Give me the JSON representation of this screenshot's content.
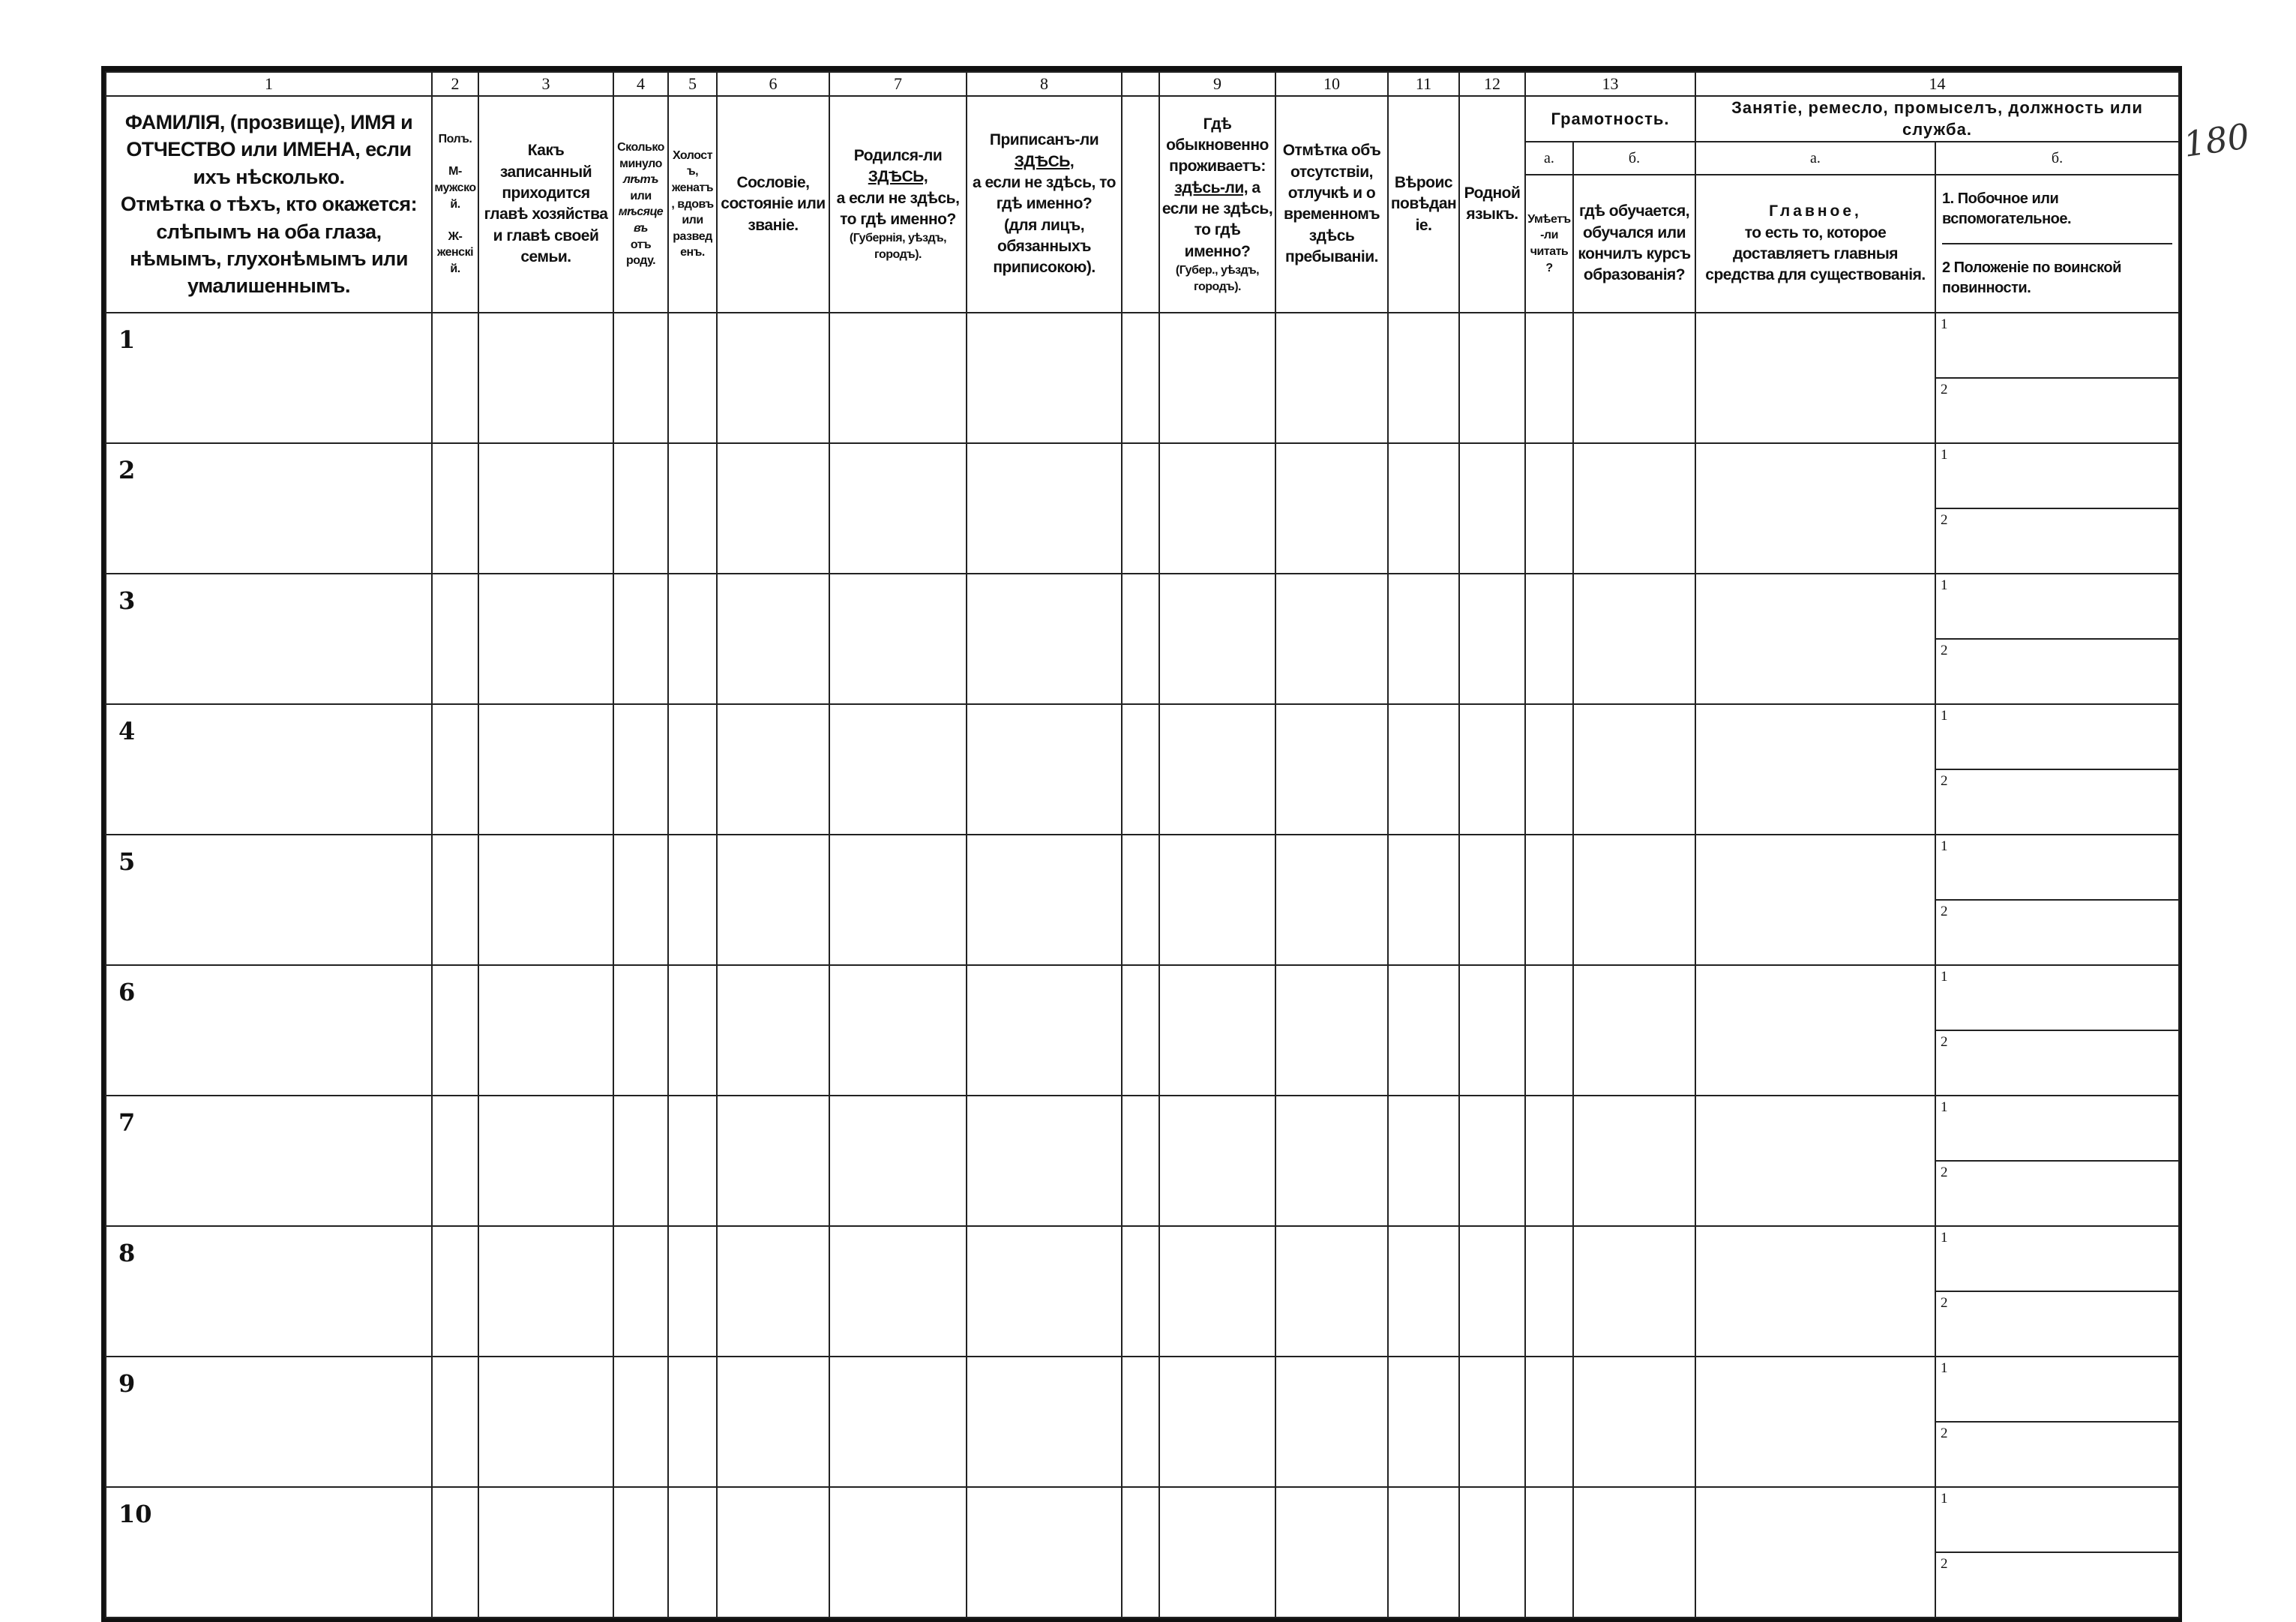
{
  "form": {
    "column_numbers": [
      "1",
      "2",
      "3",
      "4",
      "5",
      "6",
      "7",
      "8",
      "",
      "9",
      "10",
      "11",
      "12",
      "13",
      "14"
    ],
    "columns": {
      "c1": [
        "ФАМИЛІЯ, (прозвище), ИМЯ и ОТЧЕСТВО или ИМЕНА, если ихъ нѣсколько.",
        "Отмѣтка о тѣхъ, кто окажется: слѣпымъ на оба глаза, нѣмымъ, глухонѣмымъ или умалишеннымъ."
      ],
      "c2": [
        "Полъ.",
        "М-мужской.",
        "Ж-женскій."
      ],
      "c3": "Какъ записанный приходится главѣ хозяйства и главѣ своей семьи.",
      "c4": [
        "Сколько минуло",
        "лѣтъ",
        "или",
        "мѣсяцевъ",
        "отъ роду."
      ],
      "c5": "Холостъ, женатъ, вдовъ или разведенъ.",
      "c6": "Сословіе, состояніе или званіе.",
      "c7": {
        "pre": "Родился-ли",
        "em": "ЗДѢСЬ,",
        "post": "а если не здѣсь, то гдѣ именно?",
        "note": "(Губернія, уѣздъ, городъ)."
      },
      "c8": {
        "pre": "Приписанъ-ли",
        "em": "ЗДѢСЬ,",
        "post": "а если не здѣсь, то гдѣ именно?",
        "note": "(для лицъ, обязанныхъ приписокою)."
      },
      "c9": {
        "pre": "Гдѣ обыкновенно проживаетъ:",
        "em": "здѣсь-ли,",
        "post": "а если не здѣсь, то гдѣ именно?",
        "note": "(Губер., уѣздъ, городъ)."
      },
      "c10": "Отмѣтка объ отсутствіи, отлучкѣ и о временномъ здѣсь пребываніи.",
      "c11": "Вѣроисповѣданіе.",
      "c12": "Родной языкъ.",
      "c13": {
        "title": "Грамотность.",
        "a": "а.",
        "b": "б.",
        "a_desc": "Умѣетъ-ли читать?",
        "b_desc": "гдѣ обучается, обучался или кончилъ курсъ образованія?"
      },
      "c14": {
        "title": "Занятіе, ремесло, промыселъ, должность или служба.",
        "a": "а.",
        "b": "б.",
        "a_desc_title": "Главное,",
        "a_desc": "то есть то, которое доставляетъ главныя средства для существованія.",
        "b_desc_1": "1. Побочное или вспомогательное.",
        "b_desc_2": "2 Положеніе по воинской повинности."
      }
    },
    "rows": [
      "1",
      "2",
      "3",
      "4",
      "5",
      "6",
      "7",
      "8",
      "9",
      "10"
    ],
    "subrow_labels": [
      "1",
      "2"
    ]
  },
  "handwritten_number": "180"
}
